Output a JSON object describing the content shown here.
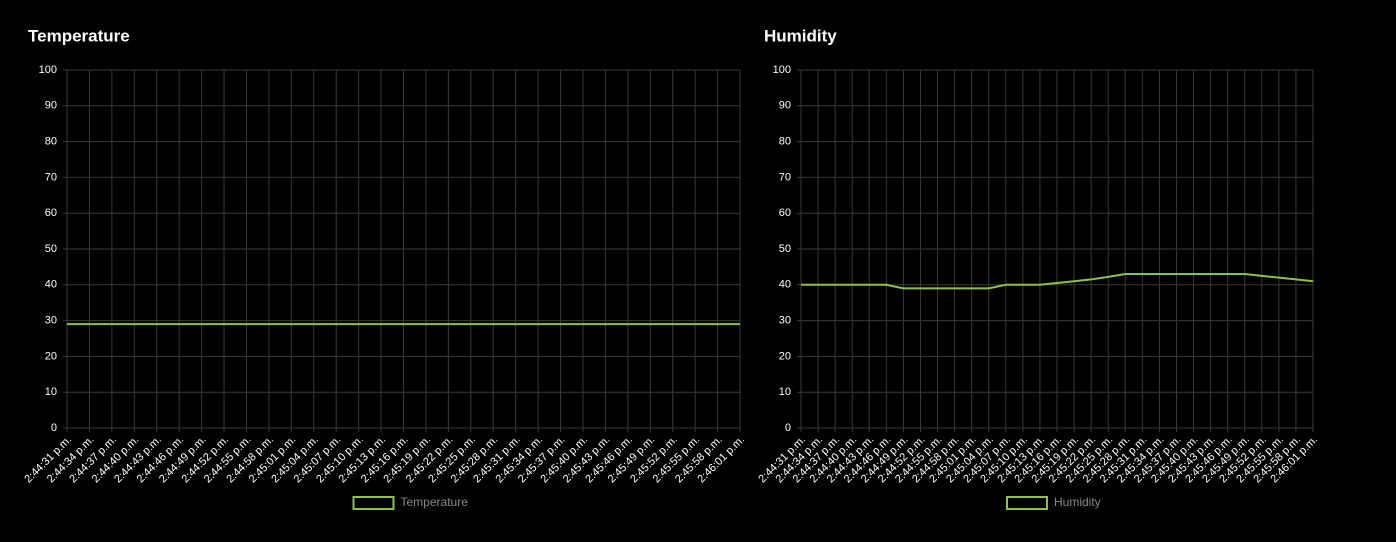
{
  "chart_data": [
    {
      "type": "line",
      "title": "Temperature",
      "categories": [
        "2:44:31 p.m.",
        "2:44:34 p.m.",
        "2:44:37 p.m.",
        "2:44:40 p.m.",
        "2:44:43 p.m.",
        "2:44:46 p.m.",
        "2:44:49 p.m.",
        "2:44:52 p.m.",
        "2:44:55 p.m.",
        "2:44:58 p.m.",
        "2:45:01 p.m.",
        "2:45:04 p.m.",
        "2:45:07 p.m.",
        "2:45:10 p.m.",
        "2:45:13 p.m.",
        "2:45:16 p.m.",
        "2:45:19 p.m.",
        "2:45:22 p.m.",
        "2:45:25 p.m.",
        "2:45:28 p.m.",
        "2:45:31 p.m.",
        "2:45:34 p.m.",
        "2:45:37 p.m.",
        "2:45:40 p.m.",
        "2:45:43 p.m.",
        "2:45:46 p.m.",
        "2:45:49 p.m.",
        "2:45:52 p.m.",
        "2:45:55 p.m.",
        "2:45:58 p.m.",
        "2:46:01 p.m."
      ],
      "series": [
        {
          "name": "Temperature",
          "color": "#8bc34a",
          "values": [
            29,
            29,
            29,
            29,
            29,
            29,
            29,
            29,
            29,
            29,
            29,
            29,
            29,
            29,
            29,
            29,
            29,
            29,
            29,
            29,
            29,
            29,
            29,
            29,
            29,
            29,
            29,
            29,
            29,
            29,
            29
          ]
        }
      ],
      "ylim": [
        0,
        100
      ],
      "yticks": [
        0,
        10,
        20,
        30,
        40,
        50,
        60,
        70,
        80,
        90,
        100
      ],
      "grid": true,
      "legend": "bottom"
    },
    {
      "type": "line",
      "title": "Humidity",
      "categories": [
        "2:44:31 p.m.",
        "2:44:34 p.m.",
        "2:44:37 p.m.",
        "2:44:40 p.m.",
        "2:44:43 p.m.",
        "2:44:46 p.m.",
        "2:44:49 p.m.",
        "2:44:52 p.m.",
        "2:44:55 p.m.",
        "2:44:58 p.m.",
        "2:45:01 p.m.",
        "2:45:04 p.m.",
        "2:45:07 p.m.",
        "2:45:10 p.m.",
        "2:45:13 p.m.",
        "2:45:16 p.m.",
        "2:45:19 p.m.",
        "2:45:22 p.m.",
        "2:45:25 p.m.",
        "2:45:28 p.m.",
        "2:45:31 p.m.",
        "2:45:34 p.m.",
        "2:45:37 p.m.",
        "2:45:40 p.m.",
        "2:45:43 p.m.",
        "2:45:46 p.m.",
        "2:45:49 p.m.",
        "2:45:52 p.m.",
        "2:45:55 p.m.",
        "2:45:58 p.m.",
        "2:46:01 p.m."
      ],
      "series": [
        {
          "name": "Humidity",
          "color": "#8bc34a",
          "values": [
            40,
            40,
            40,
            40,
            40,
            40,
            39,
            39,
            39,
            39,
            39,
            39,
            40,
            40,
            40,
            40.5,
            41,
            41.5,
            42.2,
            43,
            43,
            43,
            43,
            43,
            43,
            43,
            43,
            42.5,
            42,
            41.5,
            41
          ]
        }
      ],
      "ylim": [
        0,
        100
      ],
      "yticks": [
        0,
        10,
        20,
        30,
        40,
        50,
        60,
        70,
        80,
        90,
        100
      ],
      "grid": true,
      "legend": "bottom"
    }
  ]
}
